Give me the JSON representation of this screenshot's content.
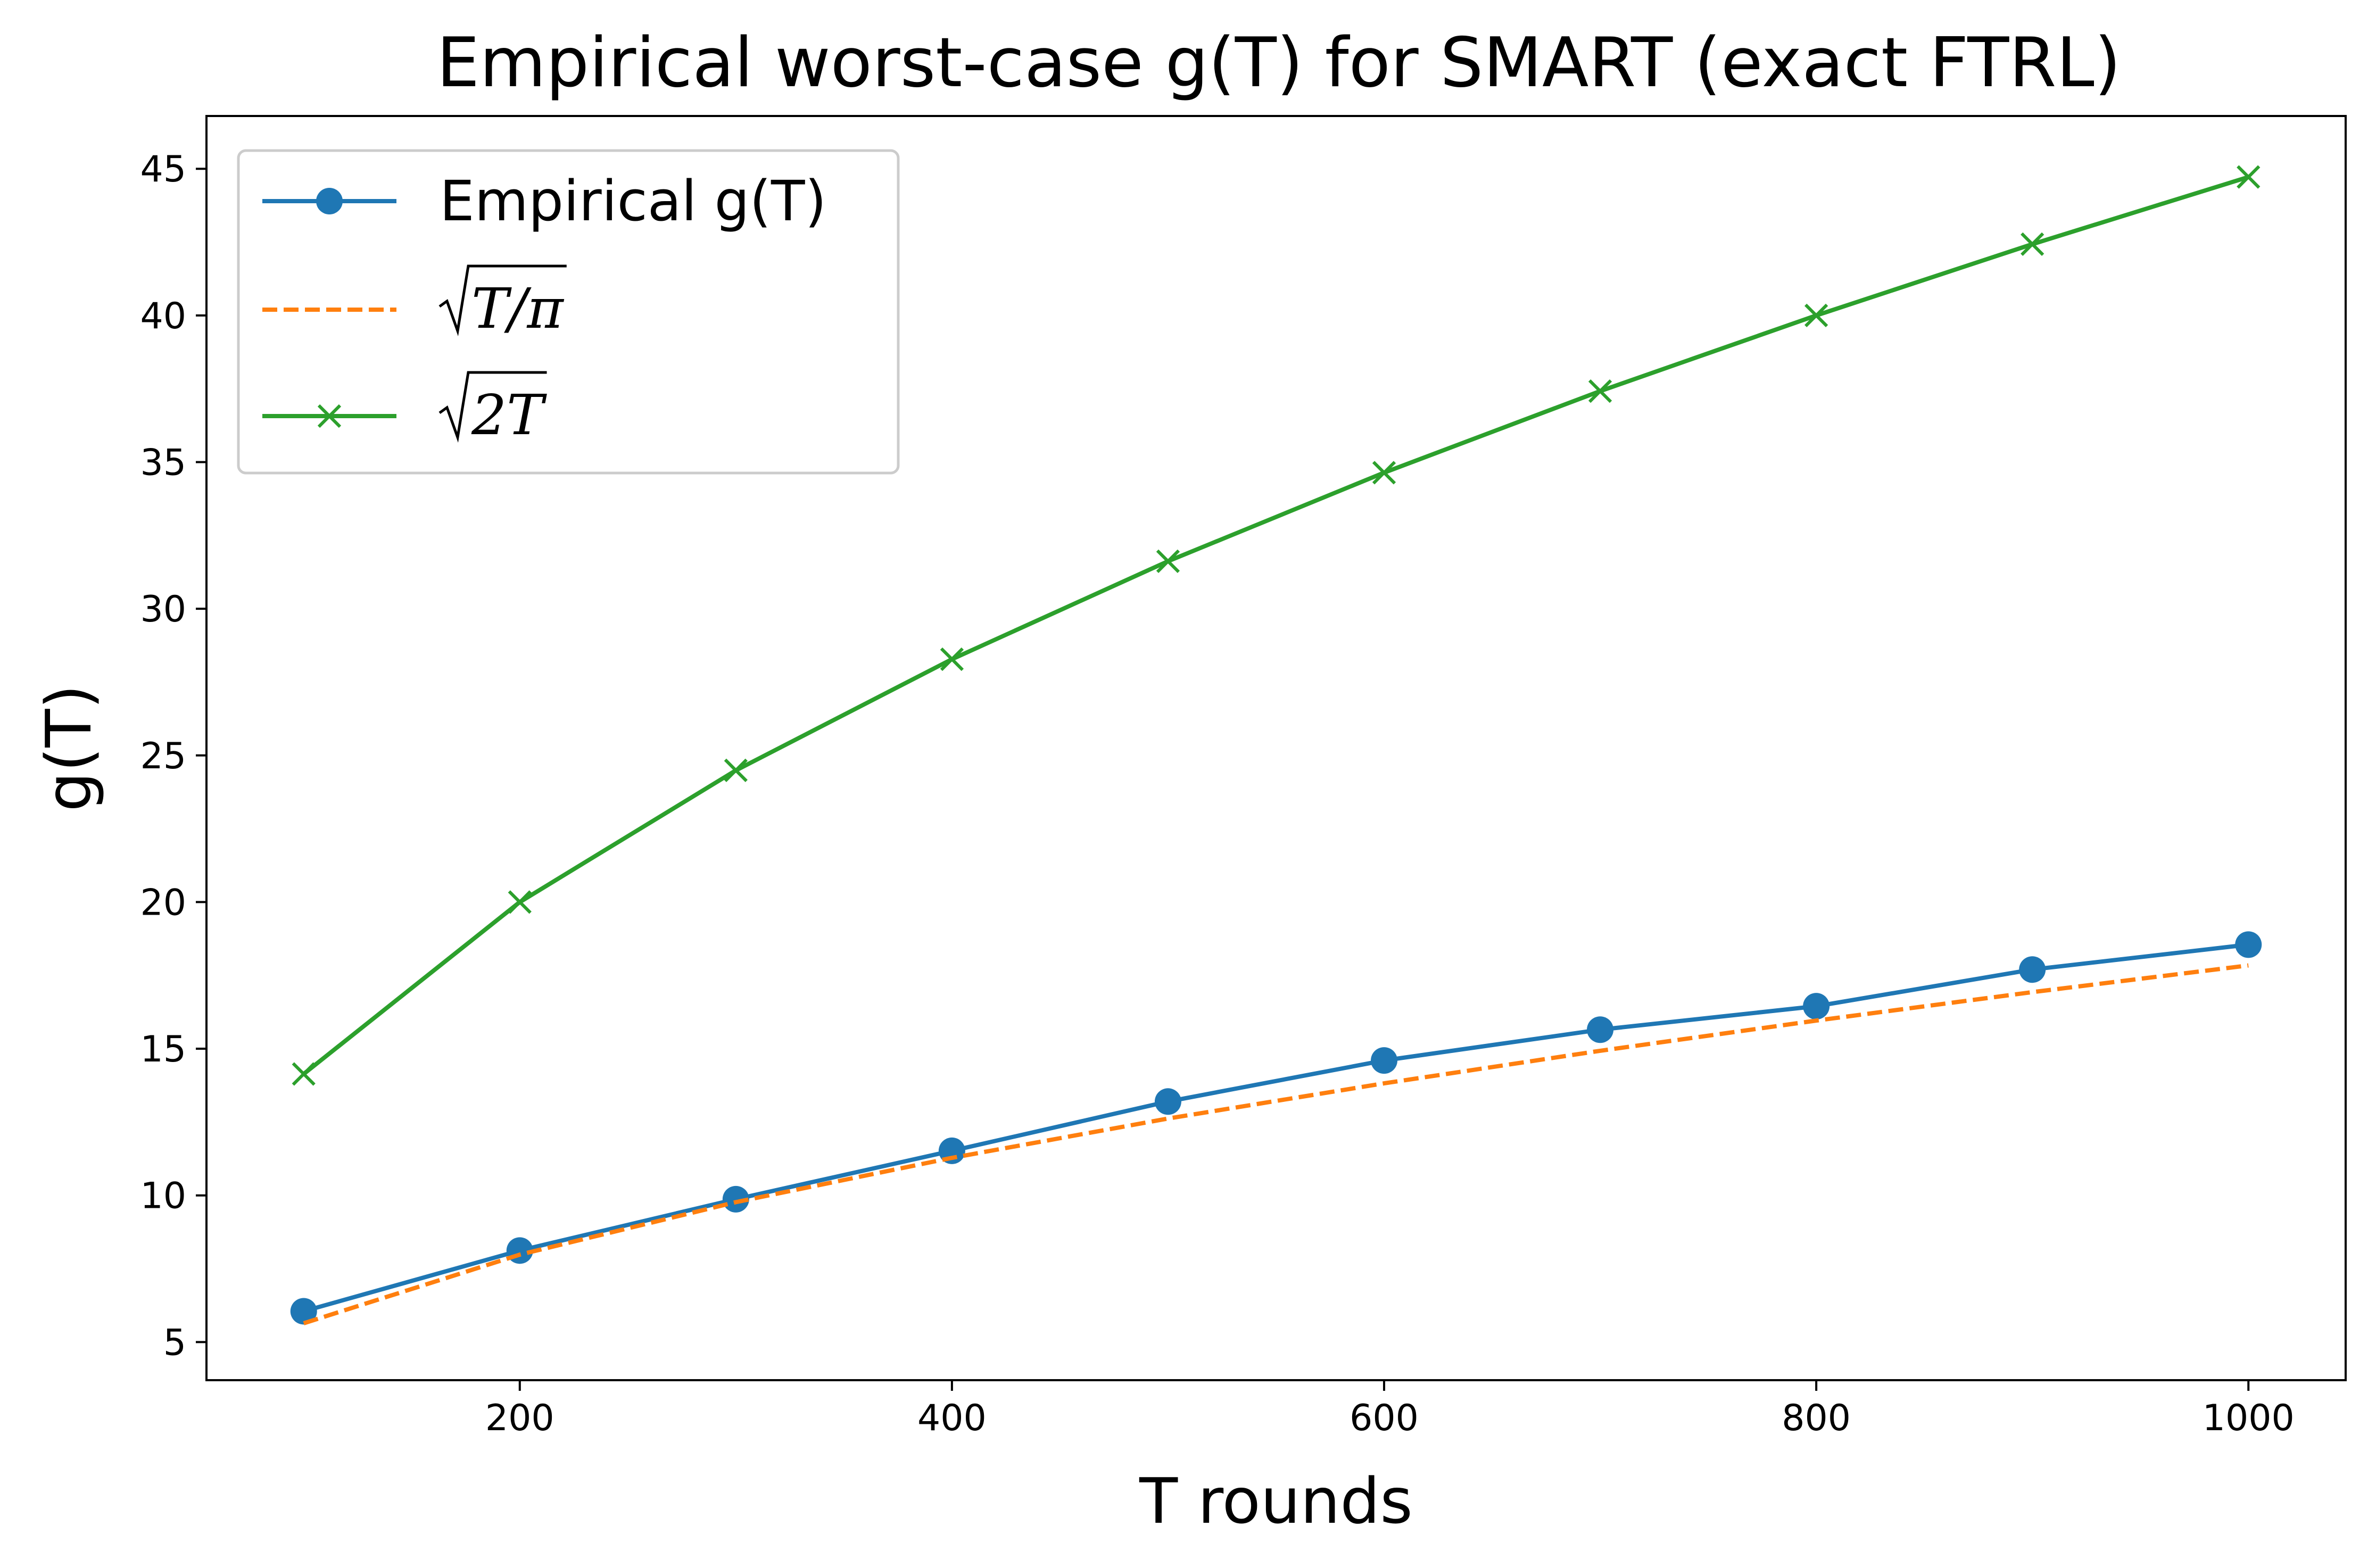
{
  "chart_data": {
    "type": "line",
    "title": "Empirical worst-case g(T) for SMART (exact FTRL)",
    "xlabel": "T rounds",
    "ylabel": "g(T)",
    "xlim": [
      55,
      1045
    ],
    "ylim": [
      3.7,
      46.8
    ],
    "xticks": [
      200,
      400,
      600,
      800,
      1000
    ],
    "yticks": [
      5,
      10,
      15,
      20,
      25,
      30,
      35,
      40,
      45
    ],
    "grid": false,
    "legend_position": "top-left",
    "x": [
      100,
      200,
      300,
      400,
      500,
      600,
      700,
      800,
      900,
      1000
    ],
    "series": [
      {
        "name": "Empirical g(T)",
        "color": "#1f77b4",
        "line_style": "solid",
        "marker": "circle",
        "values": [
          6.05,
          8.12,
          9.87,
          11.52,
          13.2,
          14.6,
          15.65,
          16.45,
          17.7,
          18.55
        ]
      },
      {
        "name": "√T/π",
        "legend_math_root": "T/π",
        "color": "#ff7f0e",
        "line_style": "dashed",
        "marker": "none",
        "values": [
          5.64,
          7.98,
          9.77,
          11.28,
          12.62,
          13.82,
          14.93,
          15.96,
          16.93,
          17.84
        ]
      },
      {
        "name": "√2T",
        "legend_math_root": "2T",
        "color": "#2ca02c",
        "line_style": "solid",
        "marker": "x",
        "values": [
          14.14,
          20.0,
          24.49,
          28.28,
          31.62,
          34.64,
          37.42,
          40.0,
          42.43,
          44.72
        ]
      }
    ]
  }
}
